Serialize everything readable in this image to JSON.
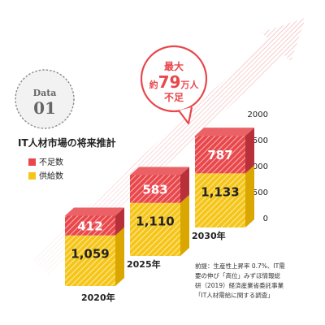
{
  "data_badge": {
    "label": "Data",
    "number": "01"
  },
  "chart_data": {
    "type": "bar",
    "stacked": true,
    "title": "IT人材市場の将来推計",
    "categories": [
      "2020年",
      "2025年",
      "2030年"
    ],
    "series": [
      {
        "name": "供給数",
        "values": [
          1059,
          1110,
          1133
        ],
        "labels": [
          "1,059",
          "1,110",
          "1,133"
        ],
        "color": "#f5c518"
      },
      {
        "name": "不足数",
        "values": [
          412,
          583,
          787
        ],
        "labels": [
          "412",
          "583",
          "787"
        ],
        "color": "#e8474b"
      }
    ],
    "ytick_labels": [
      "0",
      "500",
      "1000",
      "1500",
      "2000"
    ],
    "yticks": [
      0,
      500,
      1000,
      1500,
      2000
    ],
    "ylim": [
      0,
      2000
    ],
    "legend_position": "left",
    "callout": {
      "line1": "最大",
      "line2_prefix": "約",
      "line2_number": "79",
      "line2_suffix": "万人",
      "line3": "不足"
    },
    "note_lines": [
      "前提：生産性上昇率 0.7%、IT需",
      "要の伸び「高位」みずほ情報総",
      "研（2019）経済産業省委託事業",
      "「IT人材需給に関する調査」"
    ]
  },
  "colors": {
    "red": "#e8474b",
    "yellow": "#f5c518",
    "arrow": "#e8474b",
    "badge_bg": "#f2f2f2",
    "badge_text": "#666666",
    "text": "#222222"
  }
}
